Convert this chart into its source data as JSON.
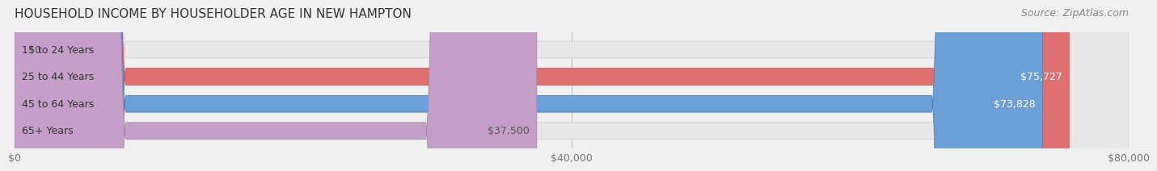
{
  "title": "HOUSEHOLD INCOME BY HOUSEHOLDER AGE IN NEW HAMPTON",
  "source": "Source: ZipAtlas.com",
  "categories": [
    "15 to 24 Years",
    "25 to 44 Years",
    "45 to 64 Years",
    "65+ Years"
  ],
  "values": [
    0,
    75727,
    73828,
    37500
  ],
  "value_labels": [
    "$0",
    "$75,727",
    "$73,828",
    "$37,500"
  ],
  "bar_colors": [
    "#e8c99a",
    "#e07070",
    "#6a9fd8",
    "#c4a0c8"
  ],
  "bar_edge_colors": [
    "#d4b080",
    "#c85050",
    "#4a7fb8",
    "#a080a8"
  ],
  "label_colors": [
    "#555555",
    "#ffffff",
    "#ffffff",
    "#555555"
  ],
  "xlim": [
    0,
    80000
  ],
  "xticks": [
    0,
    40000,
    80000
  ],
  "xticklabels": [
    "$0",
    "$40,000",
    "$80,000"
  ],
  "background_color": "#f0f0f0",
  "bar_bg_color": "#e8e8e8",
  "title_fontsize": 11,
  "source_fontsize": 9,
  "label_fontsize": 9,
  "tick_fontsize": 9,
  "bar_height": 0.62,
  "fig_width": 14.06,
  "fig_height": 2.33
}
